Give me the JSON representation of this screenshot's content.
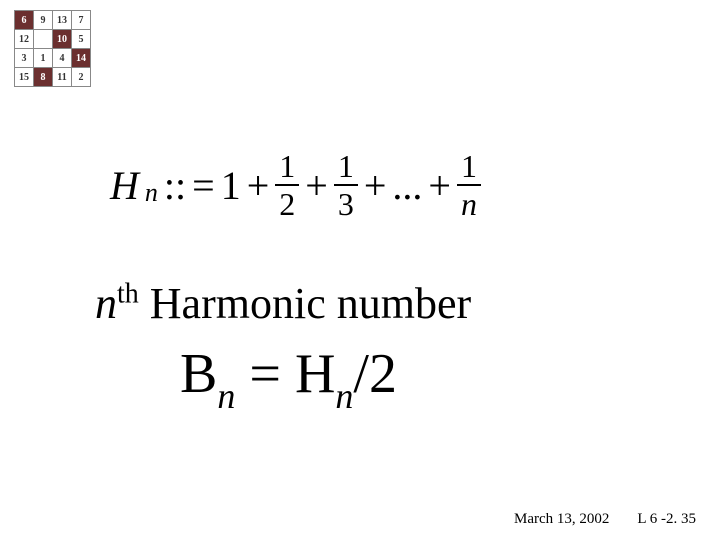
{
  "grid": {
    "cells": [
      [
        "6",
        "9",
        "13",
        "7"
      ],
      [
        "12",
        "",
        "10",
        "5"
      ],
      [
        "3",
        "1",
        "4",
        "14"
      ],
      [
        "15",
        "8",
        "11",
        "2"
      ]
    ],
    "dark_cells": [
      [
        0,
        0
      ],
      [
        1,
        2
      ],
      [
        2,
        3
      ],
      [
        3,
        1
      ]
    ],
    "dark_color": "#6b2f2f",
    "light_color": "#ffffff"
  },
  "formula": {
    "lhs_var": "H",
    "lhs_sub": "n",
    "assign": "::",
    "eq": "=",
    "first_term": "1",
    "plus": "+",
    "fracs": [
      {
        "num": "1",
        "den": "2"
      },
      {
        "num": "1",
        "den": "3"
      }
    ],
    "ellipsis": "...",
    "last_frac": {
      "num": "1",
      "den": "n"
    }
  },
  "heading": {
    "n": "n",
    "th": "th",
    "rest": " Harmonic number"
  },
  "equation": {
    "B": "B",
    "n1": "n",
    "eq": " = ",
    "H": "H",
    "n2": "n",
    "tail": "/2"
  },
  "footer": {
    "date": "March 13, 2002",
    "ref": "L 6 -2. 35"
  }
}
